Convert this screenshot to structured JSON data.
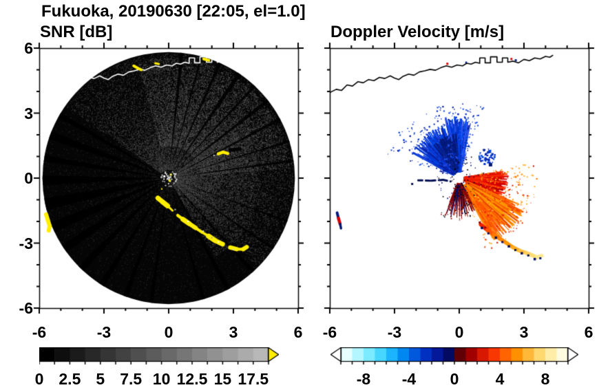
{
  "title": "Fukuoka, 20190630 [22:05, el=1.0]",
  "panels": {
    "snr": {
      "label": "SNR [dB]"
    },
    "velocity": {
      "label": "Doppler Velocity [m/s]"
    }
  },
  "chart_data": {
    "type": "heatmap",
    "subtype": "radar_ppi_pair",
    "site": "Fukuoka",
    "datetime_label": "20190630 [22:05, el=1.0]",
    "axes": {
      "xlim": [
        -6,
        6
      ],
      "ylim": [
        -6,
        6
      ],
      "major_ticks": [
        -6,
        -3,
        0,
        3,
        6
      ],
      "major_tick_labels": [
        "-6",
        "-3",
        "0",
        "3",
        "6"
      ],
      "minor_tick_step": 1
    },
    "coastline": [
      [
        -6.0,
        3.95
      ],
      [
        -5.7,
        4.1
      ],
      [
        -5.45,
        4.05
      ],
      [
        -5.2,
        4.3
      ],
      [
        -4.95,
        4.25
      ],
      [
        -4.7,
        4.45
      ],
      [
        -4.45,
        4.4
      ],
      [
        -4.2,
        4.55
      ],
      [
        -3.95,
        4.5
      ],
      [
        -3.7,
        4.65
      ],
      [
        -3.45,
        4.6
      ],
      [
        -3.2,
        4.72
      ],
      [
        -3.0,
        4.62
      ],
      [
        -2.8,
        4.55
      ],
      [
        -2.6,
        4.7
      ],
      [
        -2.35,
        4.8
      ],
      [
        -2.1,
        4.75
      ],
      [
        -1.85,
        4.9
      ],
      [
        -1.6,
        4.95
      ],
      [
        -1.35,
        5.02
      ],
      [
        -1.1,
        4.98
      ],
      [
        -0.85,
        5.1
      ],
      [
        -0.6,
        5.18
      ],
      [
        -0.35,
        5.12
      ],
      [
        -0.1,
        5.22
      ],
      [
        0.15,
        5.18
      ],
      [
        0.35,
        5.3
      ],
      [
        0.55,
        5.26
      ],
      [
        0.75,
        5.35
      ],
      [
        0.95,
        5.3
      ],
      [
        0.95,
        5.55
      ],
      [
        1.2,
        5.55
      ],
      [
        1.2,
        5.32
      ],
      [
        1.45,
        5.32
      ],
      [
        1.45,
        5.6
      ],
      [
        1.75,
        5.6
      ],
      [
        1.75,
        5.35
      ],
      [
        2.0,
        5.35
      ],
      [
        2.0,
        5.55
      ],
      [
        2.25,
        5.55
      ],
      [
        2.25,
        5.35
      ],
      [
        2.5,
        5.4
      ],
      [
        2.75,
        5.32
      ],
      [
        3.0,
        5.48
      ],
      [
        3.25,
        5.42
      ],
      [
        3.5,
        5.55
      ],
      [
        3.75,
        5.5
      ],
      [
        4.0,
        5.62
      ],
      [
        4.2,
        5.58
      ],
      [
        4.35,
        5.68
      ]
    ],
    "snr_panel": {
      "title": "SNR [dB]",
      "units": "dB",
      "background": "#ffffff",
      "disk": {
        "cx": 0,
        "cy": 0,
        "r": 5.85,
        "fill": "#050505"
      },
      "speckle_fields": [
        {
          "a0": 0,
          "a1": 360,
          "r0": 0.2,
          "r1": 5.85,
          "n": 9000,
          "g0": 12,
          "g1": 55,
          "size": 1
        },
        {
          "a0": -45,
          "a1": 145,
          "r0": 0.4,
          "r1": 5.8,
          "n": 16000,
          "g0": 25,
          "g1": 95,
          "size": 1
        },
        {
          "a0": 5,
          "a1": 105,
          "r0": 1.5,
          "r1": 5.6,
          "n": 9000,
          "g0": 35,
          "g1": 115,
          "size": 1
        },
        {
          "a0": -60,
          "a1": 40,
          "r0": 0.3,
          "r1": 4.2,
          "n": 5000,
          "g0": 30,
          "g1": 100,
          "size": 1
        }
      ],
      "dark_wedges": [
        [
          8,
          0.6
        ],
        [
          17,
          0.5
        ],
        [
          28,
          0.7
        ],
        [
          38,
          0.9
        ],
        [
          47,
          0.6
        ],
        [
          56,
          1.0
        ],
        [
          66,
          0.7
        ],
        [
          75,
          0.5
        ],
        [
          84,
          0.8
        ],
        [
          150,
          1.2
        ],
        [
          160,
          1.8
        ],
        [
          171,
          1.4
        ],
        [
          181,
          2.2
        ],
        [
          192,
          2.8
        ],
        [
          203,
          2.4
        ],
        [
          214,
          2.0
        ],
        [
          226,
          1.6
        ],
        [
          238,
          1.3
        ],
        [
          250,
          1.0
        ],
        [
          262,
          0.8
        ],
        [
          286,
          0.7
        ],
        [
          298,
          1.0
        ],
        [
          312,
          0.8
        ],
        [
          326,
          0.6
        ],
        [
          340,
          0.5
        ]
      ],
      "center_glow": {
        "n": 45,
        "r": 0.38,
        "g0": 130,
        "g1": 255
      },
      "clutter_color": "#ffee00",
      "clutter_paths": [
        {
          "pts": [
            [
              -0.5,
              -0.92
            ],
            [
              -0.28,
              -1.1
            ],
            [
              -0.05,
              -1.28
            ],
            [
              0.18,
              -1.5
            ],
            [
              0.42,
              -1.72
            ],
            [
              0.66,
              -1.9
            ],
            [
              0.95,
              -2.1
            ],
            [
              1.25,
              -2.3
            ],
            [
              1.55,
              -2.5
            ],
            [
              1.85,
              -2.68
            ],
            [
              2.15,
              -2.88
            ],
            [
              2.5,
              -3.05
            ],
            [
              2.85,
              -3.2
            ],
            [
              3.15,
              -3.28
            ],
            [
              3.45,
              -3.28
            ],
            [
              3.62,
              -3.18
            ]
          ],
          "width": 5,
          "jitter": true
        },
        {
          "pts": [
            [
              -5.68,
              -1.68
            ],
            [
              -5.6,
              -1.95
            ],
            [
              -5.52,
              -2.2
            ],
            [
              -5.56,
              -2.42
            ]
          ],
          "width": 6
        },
        {
          "pts": [
            [
              2.3,
              1.12
            ],
            [
              2.52,
              1.2
            ],
            [
              2.74,
              1.14
            ]
          ],
          "width": 4.5
        },
        {
          "pts": [
            [
              -1.62,
              5.18
            ],
            [
              -1.44,
              5.08
            ],
            [
              -1.28,
              5.0
            ]
          ],
          "width": 4
        },
        {
          "pts": [
            [
              1.62,
              5.5
            ],
            [
              1.86,
              5.44
            ]
          ],
          "width": 4
        },
        {
          "pts": [
            [
              -0.62,
              5.3
            ],
            [
              -0.46,
              5.27
            ]
          ],
          "width": 3
        },
        {
          "pts": [
            [
              2.86,
              1.3
            ],
            [
              3.3,
              1.34
            ]
          ],
          "width": 5,
          "color": "#000000"
        }
      ],
      "clutter_dots": [
        [
          0.1,
          0.16,
          "#ffff66",
          3
        ],
        [
          -0.2,
          0.08,
          "#ffffff",
          3
        ],
        [
          0.04,
          -0.12,
          "#ffee00",
          3
        ],
        [
          -0.32,
          -0.5,
          "#ffee00",
          2
        ],
        [
          0.3,
          -1.45,
          "#c8c8c8",
          2
        ],
        [
          0.9,
          -2.0,
          "#ffffff",
          2
        ],
        [
          1.6,
          -2.45,
          "#e0e0e0",
          2
        ],
        [
          2.3,
          -2.95,
          "#ffffff",
          2
        ],
        [
          3.0,
          -3.3,
          "#d0d0d0",
          2
        ],
        [
          2.0,
          -2.75,
          "#a0a0a0",
          2
        ],
        [
          2.1,
          1.05,
          "#c0c0c0",
          2
        ]
      ],
      "coast": {
        "color": "#ffffff",
        "width": 1.6
      }
    },
    "velocity_panel": {
      "title": "Doppler Velocity [m/s]",
      "units": "m/s",
      "background": "#ffffff",
      "coast": {
        "color": "#000000",
        "width": 1.6
      },
      "streak_fans": [
        {
          "a0": 78,
          "a1": 104,
          "r0": 0.35,
          "r1": 2.9,
          "n": 230,
          "w0": 1.1,
          "w1": 2.6,
          "colors": [
            "#0033cc",
            "#0045e8",
            "#2a55f0",
            "#0a1fa0"
          ]
        },
        {
          "a0": 104,
          "a1": 152,
          "r0": 0.35,
          "r1": 2.6,
          "n": 260,
          "w0": 1.1,
          "w1": 2.6,
          "colors": [
            "#0033cc",
            "#0045e8",
            "#1840d8",
            "#0a1fa0"
          ]
        },
        {
          "a0": 92,
          "a1": 128,
          "r0": 0.55,
          "r1": 2.1,
          "n": 140,
          "w0": 1.2,
          "w1": 2.4,
          "colors": [
            "#041a78",
            "#0a2490"
          ]
        },
        {
          "a0": -28,
          "a1": 8,
          "r0": 0.28,
          "r1": 2.3,
          "n": 250,
          "w0": 1.1,
          "w1": 2.4,
          "colors": [
            "#d40000",
            "#ee1c00",
            "#b40000",
            "#ff3200"
          ]
        },
        {
          "a0": -62,
          "a1": -24,
          "r0": 0.5,
          "r1": 3.4,
          "n": 300,
          "w0": 1.1,
          "w1": 2.4,
          "colors": [
            "#ff5500",
            "#ff7700",
            "#ff9900",
            "#e84400"
          ]
        },
        {
          "a0": -112,
          "a1": -62,
          "r0": 0.3,
          "r1": 1.9,
          "n": 85,
          "w0": 0.9,
          "w1": 1.6,
          "colors": [
            "#8a0000",
            "#5a0008",
            "#06106a",
            "#aa1400"
          ]
        }
      ],
      "speckle_fans": [
        {
          "a0": 70,
          "a1": 162,
          "r0": 0.5,
          "r1": 3.5,
          "n": 380,
          "s0": 1,
          "s1": 2.4,
          "colors": [
            "#0033cc",
            "#2a55f0",
            "#0a1fa0"
          ]
        },
        {
          "a0": -70,
          "a1": 12,
          "r0": 1.0,
          "r1": 3.6,
          "n": 340,
          "s0": 1,
          "s1": 2.2,
          "colors": [
            "#ff7700",
            "#ff9900",
            "#dd2200",
            "#ffb030"
          ]
        },
        {
          "a0": -120,
          "a1": -60,
          "r0": 0.4,
          "r1": 2.0,
          "n": 70,
          "s0": 1,
          "s1": 2,
          "colors": [
            "#06106a",
            "#8a0000",
            "#000000"
          ]
        },
        {
          "a0": 0,
          "a1": 360,
          "r0": 0.25,
          "r1": 1.15,
          "n": 90,
          "s0": 1,
          "s1": 1.8,
          "colors": [
            "#000000",
            "#06106a"
          ]
        }
      ],
      "blue_cluster": {
        "cx": 1.25,
        "cy": 1.0,
        "r": 0.38,
        "n": 70,
        "colors": [
          "#0033cc",
          "#0045e8",
          "#0a1fa0"
        ]
      },
      "paths": [
        {
          "pts": [
            [
              1.0,
              -2.15
            ],
            [
              1.3,
              -2.4
            ],
            [
              1.6,
              -2.6
            ],
            [
              1.9,
              -2.8
            ],
            [
              2.2,
              -3.0
            ],
            [
              2.5,
              -3.2
            ],
            [
              2.8,
              -3.35
            ],
            [
              3.1,
              -3.45
            ],
            [
              3.35,
              -3.55
            ],
            [
              3.6,
              -3.65
            ],
            [
              3.82,
              -3.58
            ]
          ],
          "colors": [
            "#ee2200",
            "#ff5500",
            "#ff7700",
            "#ff8800",
            "#ff9900",
            "#ffaa22",
            "#ffc044",
            "#ffd060",
            "#ffdd77",
            "#ffe890"
          ],
          "width": 5.5
        },
        {
          "pts": [
            [
              -1.9,
              -0.1
            ],
            [
              -1.3,
              -0.12
            ],
            [
              -0.75,
              -0.08
            ],
            [
              -0.4,
              -0.15
            ]
          ],
          "colors": [
            "#041052"
          ],
          "width": 3,
          "dash": [
            6,
            5
          ]
        },
        {
          "pts": [
            [
              -5.66,
              -1.6
            ],
            [
              -5.6,
              -1.85
            ]
          ],
          "colors": [
            "#041a78"
          ],
          "width": 4
        },
        {
          "pts": [
            [
              -5.6,
              -1.85
            ],
            [
              -5.52,
              -2.12
            ]
          ],
          "colors": [
            "#d80000"
          ],
          "width": 4.5
        },
        {
          "pts": [
            [
              -5.52,
              -2.12
            ],
            [
              -5.48,
              -2.32
            ]
          ],
          "colors": [
            "#041a78"
          ],
          "width": 3.5
        }
      ],
      "dots": [
        [
          1.05,
          -2.3,
          "#041060",
          3.5
        ],
        [
          1.35,
          -2.55,
          "#041060",
          3
        ],
        [
          1.7,
          -2.75,
          "#041060",
          3.5
        ],
        [
          2.0,
          -2.95,
          "#041060",
          3
        ],
        [
          2.3,
          -3.15,
          "#041060",
          3.5
        ],
        [
          2.6,
          -3.32,
          "#041060",
          3
        ],
        [
          2.9,
          -3.47,
          "#041060",
          3.5
        ],
        [
          3.2,
          -3.57,
          "#041060",
          3
        ],
        [
          3.5,
          -3.74,
          "#041060",
          3.5
        ],
        [
          3.76,
          -3.7,
          "#041060",
          3
        ],
        [
          0.95,
          -2.05,
          "#8b0000",
          3
        ],
        [
          1.2,
          -2.28,
          "#8b0000",
          2.5
        ],
        [
          1.45,
          0.62,
          "#041a78",
          5
        ],
        [
          1.15,
          1.3,
          "#041a78",
          3
        ],
        [
          -2.18,
          -0.27,
          "#041052",
          3
        ],
        [
          -0.55,
          5.28,
          "#d80000",
          3
        ],
        [
          2.42,
          5.5,
          "#d80000",
          3
        ],
        [
          2.62,
          5.44,
          "#041a78",
          3
        ],
        [
          0.32,
          5.34,
          "#041a78",
          2.5
        ],
        [
          -0.05,
          2.95,
          "#0a1fa0",
          2.5
        ],
        [
          0.4,
          3.1,
          "#0033cc",
          2
        ]
      ],
      "center_hole": {
        "r": 0.2,
        "color": "#ffffff"
      }
    },
    "colorbars": {
      "snr": {
        "label_for": "SNR [dB]",
        "vmin": 0,
        "vmax": 18.75,
        "segments": [
          "#000000",
          "#0e0e0e",
          "#1b1b1b",
          "#282828",
          "#353535",
          "#424242",
          "#4f4f4f",
          "#5c5c5c",
          "#696969",
          "#767676",
          "#848484",
          "#919191",
          "#9e9e9e",
          "#ababab",
          "#b8b8b8"
        ],
        "over_arrow": "#ffee00",
        "tick_values": [
          0,
          2.5,
          5,
          7.5,
          10,
          12.5,
          15,
          17.5
        ],
        "tick_labels": [
          "0",
          "2.5",
          "5",
          "7.5",
          "10",
          "12.5",
          "15",
          "17.5"
        ]
      },
      "velocity": {
        "label_for": "Doppler Velocity [m/s]",
        "vmin": -10,
        "vmax": 10,
        "segments": [
          "#e6ffff",
          "#b4f6ff",
          "#7ceaff",
          "#46d6ff",
          "#1cb4fe",
          "#0088f0",
          "#0058dc",
          "#0030c0",
          "#04189a",
          "#040a62",
          "#600006",
          "#a20000",
          "#d81800",
          "#f83800",
          "#ff6400",
          "#ff9000",
          "#ffb838",
          "#ffd970",
          "#ffeda8",
          "#fffbe0"
        ],
        "under_arrow": "#ffffff",
        "over_arrow": "#ffffff",
        "tick_values": [
          -8,
          -4,
          0,
          4,
          8
        ],
        "tick_labels": [
          "-8",
          "-4",
          "0",
          "4",
          "8"
        ]
      }
    }
  }
}
